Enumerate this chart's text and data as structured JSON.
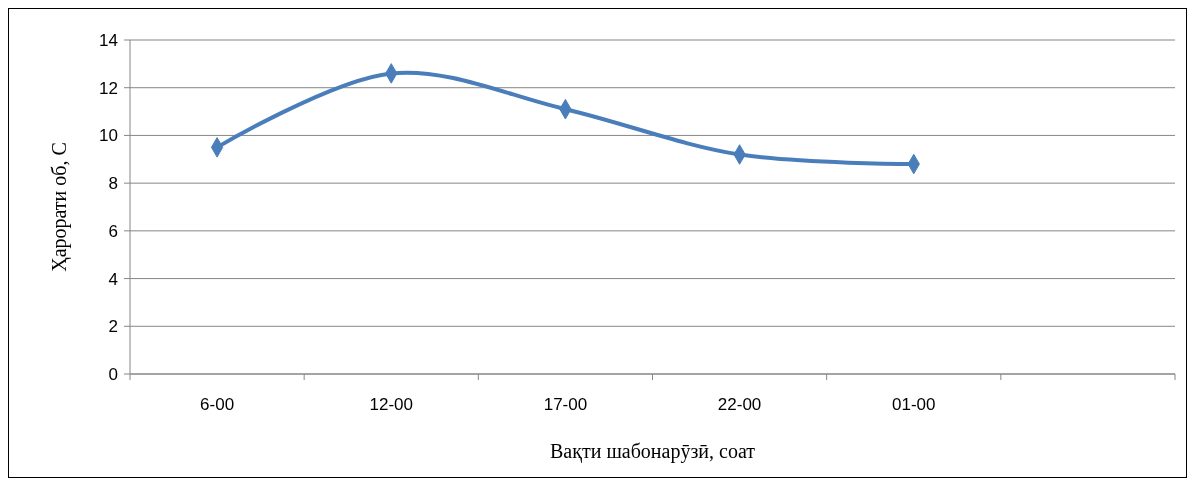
{
  "chart_data": {
    "type": "line",
    "xlabel": "Вақти шабонарӯзӣ, соат",
    "ylabel": "Ҳарорати об, С",
    "categories": [
      "6-00",
      "12-00",
      "17-00",
      "22-00",
      "01-00",
      null
    ],
    "series": [
      {
        "color": "#4a7ebb",
        "values": [
          9.5,
          12.6,
          11.1,
          9.2,
          8.8,
          null
        ]
      }
    ],
    "ylim": [
      0,
      14
    ],
    "yticks": [
      0,
      2,
      4,
      6,
      8,
      10,
      12,
      14
    ],
    "grid": "y",
    "marker": "diamond",
    "line_style": "solid"
  }
}
